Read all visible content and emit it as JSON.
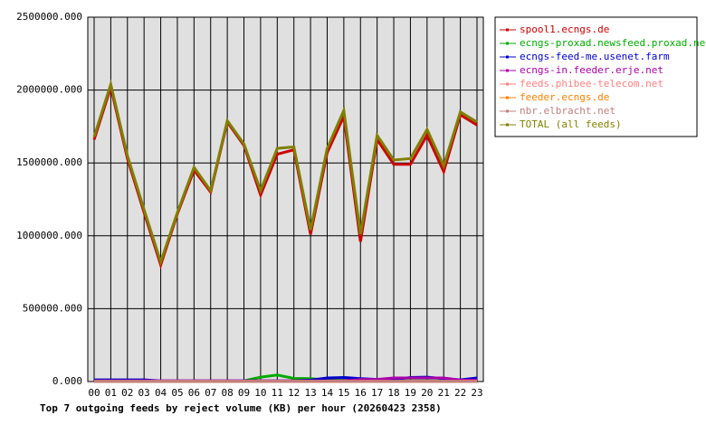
{
  "chart_data": {
    "type": "line",
    "title": "Top 7 outgoing feeds by reject volume (KB) per hour (20260423 2358)",
    "categories": [
      "00",
      "01",
      "02",
      "03",
      "04",
      "05",
      "06",
      "07",
      "08",
      "09",
      "10",
      "11",
      "12",
      "13",
      "14",
      "15",
      "16",
      "17",
      "18",
      "19",
      "20",
      "21",
      "22",
      "23"
    ],
    "ylim": [
      0,
      2500000
    ],
    "yticks": [
      {
        "value": 0,
        "label": "0.000"
      },
      {
        "value": 500000,
        "label": "500000.000"
      },
      {
        "value": 1000000,
        "label": "1000000.000"
      },
      {
        "value": 1500000,
        "label": "1500000.000"
      },
      {
        "value": 2000000,
        "label": "2000000.000"
      },
      {
        "value": 2500000,
        "label": "2500000.000"
      }
    ],
    "grid": true,
    "legend": "right",
    "series": [
      {
        "name": "spool1.ecngs.de",
        "color": "#cc0000",
        "values": [
          1660000,
          2020000,
          1530000,
          1160000,
          800000,
          1150000,
          1450000,
          1300000,
          1780000,
          1620000,
          1280000,
          1560000,
          1590000,
          1010000,
          1570000,
          1820000,
          960000,
          1660000,
          1490000,
          1490000,
          1690000,
          1440000,
          1830000,
          1760000
        ]
      },
      {
        "name": "ecngs-proxad.newsfeed.proxad.net",
        "color": "#00aa00",
        "values": [
          0,
          0,
          0,
          0,
          0,
          0,
          0,
          0,
          0,
          5000,
          30000,
          45000,
          22000,
          20000,
          10000,
          8000,
          5000,
          5000,
          5000,
          5000,
          5000,
          5000,
          5000,
          5000
        ]
      },
      {
        "name": "ecngs-feed-me.usenet.farm",
        "color": "#0000cc",
        "values": [
          12000,
          12000,
          12000,
          12000,
          5000,
          5000,
          5000,
          5000,
          5000,
          5000,
          5000,
          5000,
          5000,
          10000,
          25000,
          28000,
          20000,
          15000,
          15000,
          28000,
          30000,
          20000,
          12000,
          25000
        ]
      },
      {
        "name": "ecngs-in.feeder.erje.net",
        "color": "#aa00aa",
        "values": [
          5000,
          5000,
          5000,
          5000,
          5000,
          5000,
          5000,
          5000,
          5000,
          5000,
          5000,
          5000,
          5000,
          5000,
          5000,
          5000,
          15000,
          15000,
          25000,
          25000,
          25000,
          25000,
          10000,
          10000
        ]
      },
      {
        "name": "feeds.phibee-telecom.net",
        "color": "#ff8080",
        "values": [
          2000,
          2000,
          2000,
          2000,
          2000,
          2000,
          2000,
          2000,
          2000,
          2000,
          2000,
          2000,
          2000,
          2000,
          2000,
          2000,
          2000,
          2000,
          2000,
          2000,
          2000,
          2000,
          2000,
          2000
        ]
      },
      {
        "name": "feeder.ecngs.de",
        "color": "#ff8000",
        "values": [
          1000,
          1000,
          1000,
          1000,
          1000,
          1000,
          1000,
          1000,
          1000,
          1000,
          1000,
          1000,
          1000,
          1000,
          1000,
          1000,
          1000,
          1000,
          1000,
          1000,
          1000,
          1000,
          1000,
          1000
        ]
      },
      {
        "name": "nbr.elbracht.net",
        "color": "#c08080",
        "values": [
          1000,
          1000,
          1000,
          1000,
          1000,
          1000,
          1000,
          1000,
          1000,
          1000,
          1000,
          1000,
          1000,
          1000,
          1000,
          1000,
          1000,
          1000,
          1000,
          1000,
          1000,
          1000,
          1000,
          1000
        ]
      },
      {
        "name": "TOTAL (all feeds)",
        "color": "#808000",
        "values": [
          1680000,
          2040000,
          1550000,
          1180000,
          820000,
          1160000,
          1470000,
          1310000,
          1790000,
          1630000,
          1310000,
          1600000,
          1610000,
          1040000,
          1600000,
          1860000,
          1010000,
          1690000,
          1520000,
          1530000,
          1730000,
          1480000,
          1850000,
          1780000
        ]
      }
    ]
  }
}
